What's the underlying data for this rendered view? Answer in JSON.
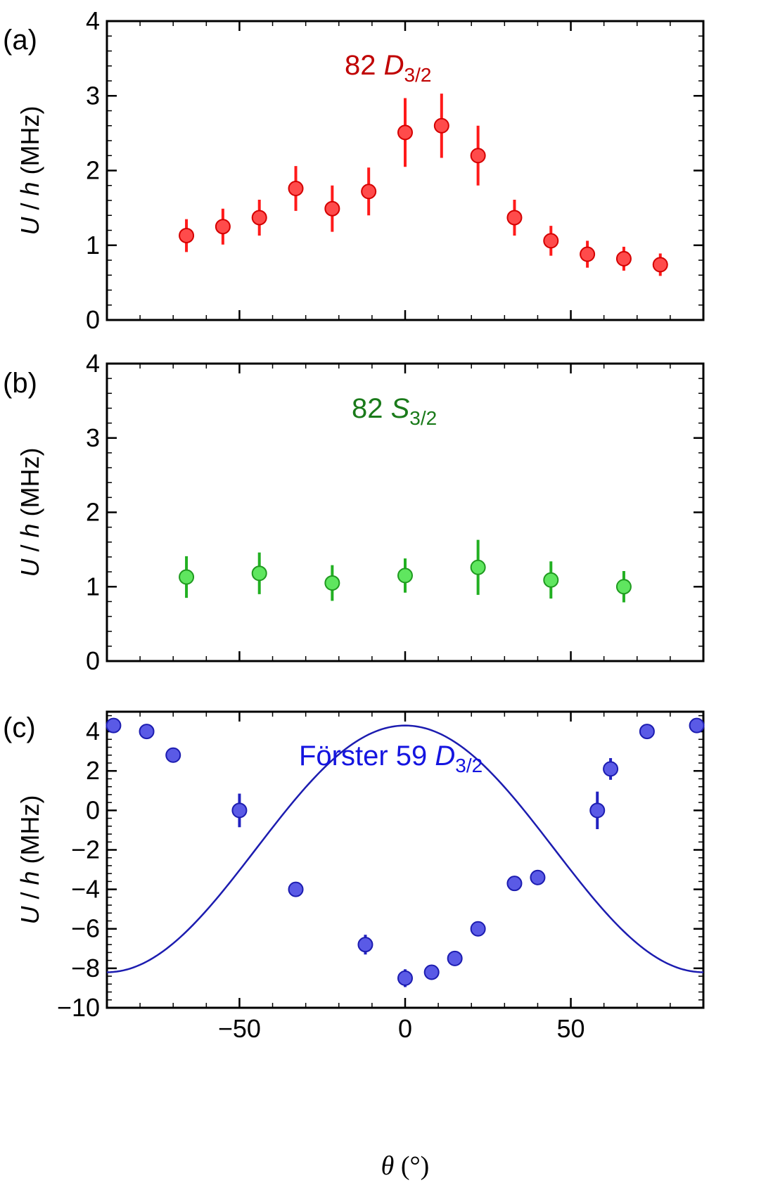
{
  "chart_data": [
    {
      "type": "scatter",
      "panel_label": "(a)",
      "annotation": {
        "prefix": "82 ",
        "italic": "D",
        "sub": "3/2",
        "color": "#c00000"
      },
      "ylabel": {
        "italic1": "U",
        "mid": " / ",
        "italic2": "h",
        "rest": " (MHz)"
      },
      "ylim": [
        0,
        4
      ],
      "xlim": [
        -90,
        90
      ],
      "yticks": [
        0,
        1,
        2,
        3,
        4
      ],
      "xticks": [
        -50,
        0,
        50
      ],
      "show_xtick_labels": false,
      "marker_color": "#ff4b4b",
      "marker_edge": "#d40000",
      "err_color": "#ff1a1a",
      "series": [
        {
          "name": "82 D3/2",
          "x": [
            -66,
            -55,
            -44,
            -33,
            -22,
            -11,
            0,
            11,
            22,
            33,
            44,
            55,
            66,
            77
          ],
          "y": [
            1.13,
            1.25,
            1.37,
            1.76,
            1.49,
            1.72,
            2.51,
            2.6,
            2.2,
            1.37,
            1.06,
            0.88,
            0.82,
            0.74
          ],
          "err": [
            0.22,
            0.24,
            0.24,
            0.3,
            0.31,
            0.32,
            0.46,
            0.43,
            0.4,
            0.24,
            0.2,
            0.18,
            0.16,
            0.15
          ]
        }
      ]
    },
    {
      "type": "scatter",
      "panel_label": "(b)",
      "annotation": {
        "prefix": "82 ",
        "italic": "S",
        "sub": "3/2",
        "color": "#1a7a1a"
      },
      "ylabel": {
        "italic1": "U",
        "mid": " / ",
        "italic2": "h",
        "rest": " (MHz)"
      },
      "ylim": [
        0,
        4
      ],
      "xlim": [
        -90,
        90
      ],
      "yticks": [
        0,
        1,
        2,
        3,
        4
      ],
      "xticks": [
        -50,
        0,
        50
      ],
      "show_xtick_labels": false,
      "marker_color": "#5fe65f",
      "marker_edge": "#1f9a1f",
      "err_color": "#22b022",
      "series": [
        {
          "name": "82 S3/2",
          "x": [
            -66,
            -44,
            -22,
            0,
            22,
            44,
            66
          ],
          "y": [
            1.13,
            1.18,
            1.05,
            1.15,
            1.26,
            1.09,
            1.0
          ],
          "err": [
            0.28,
            0.28,
            0.24,
            0.23,
            0.37,
            0.25,
            0.21
          ]
        }
      ]
    },
    {
      "type": "scatter",
      "panel_label": "(c)",
      "annotation": {
        "prefix": "Förster 59 ",
        "italic": "D",
        "sub": "3/2",
        "color": "#1515e0"
      },
      "ylabel": {
        "italic1": "U",
        "mid": " / ",
        "italic2": "h",
        "rest": " (MHz)"
      },
      "xlabel": {
        "italic": "θ",
        "rest": " (°)"
      },
      "ylim": [
        -10,
        5
      ],
      "xlim": [
        -90,
        90
      ],
      "yticks": [
        -10,
        -8,
        -6,
        -4,
        -2,
        0,
        2,
        4
      ],
      "ytick_labels": [
        "−10",
        "−8",
        "−6",
        "−4",
        "−2",
        "0",
        "2",
        "4"
      ],
      "xticks": [
        -50,
        0,
        50
      ],
      "xtick_labels": [
        "−50",
        "0",
        "50"
      ],
      "show_xtick_labels": true,
      "marker_color": "#5a5ae6",
      "marker_edge": "#1c1cb0",
      "err_color": "#2222c0",
      "fit": {
        "amplitude": 6.25,
        "offset": -1.95,
        "color": "#1c1cb0",
        "form": "offset + amplitude*cos(2*theta)"
      },
      "series": [
        {
          "name": "Förster 59 D3/2",
          "x": [
            -88,
            -78,
            -70,
            -50,
            -33,
            -12,
            0,
            8,
            15,
            22,
            33,
            40,
            58,
            62,
            73,
            88
          ],
          "y": [
            4.3,
            4.0,
            2.8,
            0.0,
            -4.0,
            -6.8,
            -8.5,
            -8.2,
            -7.5,
            -6.0,
            -3.7,
            -3.4,
            0.0,
            2.1,
            4.0,
            4.3
          ],
          "err": [
            0.0,
            0.0,
            0.0,
            0.85,
            0.0,
            0.5,
            0.45,
            0.0,
            0.0,
            0.0,
            0.0,
            0.0,
            0.95,
            0.55,
            0.0,
            0.0
          ]
        }
      ]
    }
  ]
}
